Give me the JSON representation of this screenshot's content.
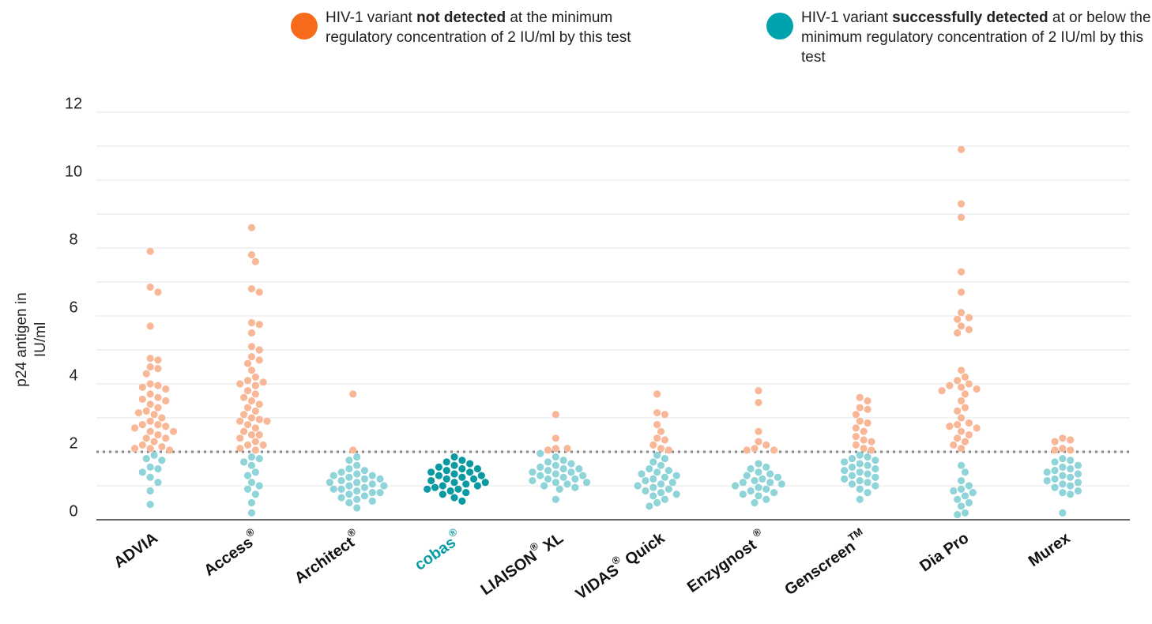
{
  "chart_data": {
    "type": "beeswarm",
    "y_label": [
      "p24 antigen in",
      "IU/ml"
    ],
    "legend": [
      {
        "parts": [
          "HIV-1 variant ",
          "not detected",
          " at the minimum regulatory concentration of 2 IU/ml by this test"
        ],
        "color": "#f76b1c"
      },
      {
        "parts": [
          "HIV-1 variant ",
          "successfully detected",
          " at or below the minimum regulatory concentration of 2 IU/ml by this test"
        ],
        "color": "#00a3ad"
      }
    ],
    "categories": [
      [
        "ADVIA"
      ],
      [
        "Access",
        "®"
      ],
      [
        "Architect",
        "®"
      ],
      [
        "cobas",
        "®"
      ],
      [
        "LIAISON",
        "®",
        " XL"
      ],
      [
        "VIDAS",
        "®",
        " Quick"
      ],
      [
        "Enzygnost ",
        "®"
      ],
      [
        "Genscreen",
        "TM"
      ],
      [
        "Dia Pro"
      ],
      [
        "Murex"
      ]
    ],
    "values": [
      [
        7.9,
        6.85,
        6.7,
        5.7,
        4.75,
        4.7,
        4.5,
        4.45,
        4.3,
        4.0,
        3.95,
        3.9,
        3.85,
        3.7,
        3.6,
        3.55,
        3.5,
        3.4,
        3.3,
        3.2,
        3.15,
        3.1,
        3.0,
        2.9,
        2.8,
        2.8,
        2.75,
        2.7,
        2.6,
        2.6,
        2.5,
        2.4,
        2.4,
        2.3,
        2.2,
        2.15,
        2.1,
        2.1,
        2.05,
        1.9,
        1.8,
        1.75,
        1.55,
        1.5,
        1.4,
        1.25,
        1.1,
        0.85,
        0.45
      ],
      [
        8.6,
        7.8,
        7.6,
        6.8,
        6.7,
        5.8,
        5.75,
        5.5,
        5.1,
        5.0,
        4.8,
        4.7,
        4.6,
        4.4,
        4.2,
        4.1,
        4.05,
        4.0,
        3.95,
        3.8,
        3.7,
        3.6,
        3.5,
        3.4,
        3.3,
        3.2,
        3.1,
        3.0,
        2.95,
        2.9,
        2.9,
        2.8,
        2.7,
        2.6,
        2.5,
        2.5,
        2.4,
        2.3,
        2.2,
        2.2,
        2.1,
        2.05,
        1.85,
        1.8,
        1.7,
        1.6,
        1.4,
        1.3,
        1.1,
        1.0,
        0.9,
        0.75,
        0.5,
        0.2
      ],
      [
        3.7,
        2.05,
        1.85,
        1.75,
        1.6,
        1.5,
        1.45,
        1.4,
        1.35,
        1.3,
        1.3,
        1.25,
        1.2,
        1.2,
        1.15,
        1.1,
        1.1,
        1.05,
        1.0,
        1.0,
        0.95,
        0.9,
        0.9,
        0.85,
        0.8,
        0.8,
        0.75,
        0.7,
        0.65,
        0.6,
        0.55,
        0.5,
        0.35
      ],
      [
        1.85,
        1.75,
        1.7,
        1.65,
        1.6,
        1.55,
        1.5,
        1.5,
        1.45,
        1.4,
        1.4,
        1.35,
        1.3,
        1.3,
        1.25,
        1.2,
        1.2,
        1.15,
        1.1,
        1.1,
        1.05,
        1.0,
        1.0,
        0.95,
        0.9,
        0.9,
        0.85,
        0.8,
        0.75,
        0.65,
        0.55
      ],
      [
        3.1,
        2.4,
        2.1,
        2.1,
        2.05,
        1.95,
        1.85,
        1.75,
        1.7,
        1.65,
        1.6,
        1.55,
        1.5,
        1.5,
        1.45,
        1.4,
        1.4,
        1.35,
        1.3,
        1.3,
        1.25,
        1.2,
        1.2,
        1.15,
        1.1,
        1.1,
        1.05,
        1.0,
        0.95,
        0.9,
        0.6
      ],
      [
        3.7,
        3.15,
        3.1,
        2.8,
        2.6,
        2.4,
        2.35,
        2.2,
        2.1,
        2.05,
        1.9,
        1.8,
        1.7,
        1.6,
        1.5,
        1.45,
        1.4,
        1.35,
        1.3,
        1.25,
        1.2,
        1.15,
        1.1,
        1.05,
        1.0,
        0.95,
        0.9,
        0.85,
        0.8,
        0.75,
        0.7,
        0.6,
        0.5,
        0.4
      ],
      [
        3.8,
        3.45,
        2.6,
        2.3,
        2.2,
        2.1,
        2.05,
        2.05,
        1.65,
        1.55,
        1.5,
        1.4,
        1.35,
        1.3,
        1.25,
        1.2,
        1.15,
        1.1,
        1.1,
        1.05,
        1.0,
        0.95,
        0.9,
        0.85,
        0.8,
        0.75,
        0.7,
        0.6,
        0.5
      ],
      [
        3.6,
        3.5,
        3.3,
        3.25,
        3.1,
        2.9,
        2.85,
        2.7,
        2.6,
        2.45,
        2.35,
        2.3,
        2.2,
        2.1,
        2.05,
        1.9,
        1.85,
        1.8,
        1.75,
        1.7,
        1.65,
        1.6,
        1.55,
        1.5,
        1.45,
        1.4,
        1.35,
        1.3,
        1.25,
        1.2,
        1.15,
        1.1,
        1.05,
        1.0,
        0.9,
        0.8,
        0.6
      ],
      [
        10.9,
        9.3,
        8.9,
        7.3,
        6.7,
        6.1,
        5.95,
        5.9,
        5.7,
        5.6,
        5.5,
        4.4,
        4.2,
        4.1,
        4.0,
        3.95,
        3.9,
        3.85,
        3.8,
        3.7,
        3.5,
        3.3,
        3.2,
        3.0,
        2.85,
        2.8,
        2.75,
        2.7,
        2.6,
        2.5,
        2.4,
        2.3,
        2.2,
        2.1,
        1.6,
        1.4,
        1.15,
        1.0,
        0.9,
        0.85,
        0.8,
        0.7,
        0.6,
        0.5,
        0.4,
        0.2,
        0.15
      ],
      [
        2.4,
        2.35,
        2.3,
        2.1,
        2.05,
        2.05,
        1.8,
        1.75,
        1.7,
        1.6,
        1.55,
        1.5,
        1.45,
        1.4,
        1.35,
        1.3,
        1.25,
        1.2,
        1.15,
        1.1,
        1.05,
        1.0,
        0.95,
        0.85,
        0.8,
        0.75,
        0.2
      ]
    ],
    "threshold": 2,
    "above_color": "#f8b898",
    "below_color": "#8ed4d8",
    "highlight_index": 3,
    "highlight_color": "#0a9ba2",
    "ylim": [
      0,
      12
    ],
    "yticks": [
      0,
      2,
      4,
      6,
      8,
      10,
      12
    ],
    "minor_grid": [
      1,
      3,
      5,
      7,
      9,
      11
    ],
    "grid": true
  }
}
